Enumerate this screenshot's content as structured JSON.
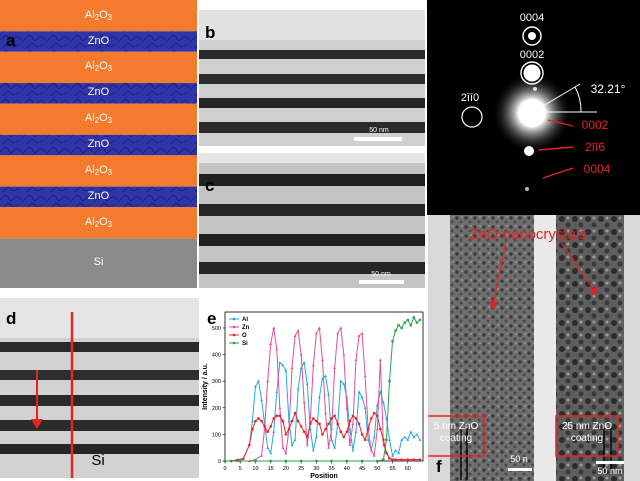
{
  "panel_a": {
    "label": "a",
    "layers": [
      {
        "name": "Al2O3",
        "kind": "al2o3"
      },
      {
        "name": "ZnO",
        "kind": "zno"
      },
      {
        "name": "Al2O3",
        "kind": "al2o3"
      },
      {
        "name": "ZnO",
        "kind": "zno"
      },
      {
        "name": "Al2O3",
        "kind": "al2o3"
      },
      {
        "name": "ZnO",
        "kind": "zno"
      },
      {
        "name": "Al2O3",
        "kind": "al2o3"
      },
      {
        "name": "ZnO",
        "kind": "zno"
      },
      {
        "name": "Al2O3",
        "kind": "al2o3"
      },
      {
        "name": "Si",
        "kind": "si"
      }
    ],
    "colors": {
      "al2o3": "#f47a2e",
      "zno": "#2f35a8",
      "si": "#8a8a8a"
    }
  },
  "panel_b": {
    "label": "b",
    "scalebar": "50 nm"
  },
  "panel_c": {
    "label": "c",
    "scalebar": "50 nm"
  },
  "panel_diffraction": {
    "spots_white": [
      "0004",
      "0002",
      "2īī0"
    ],
    "angle": "32.21°",
    "spots_red": [
      "0002",
      "2īī6",
      "0004"
    ]
  },
  "panel_d": {
    "label": "d",
    "substrate": "Si"
  },
  "panel_f": {
    "label": "f",
    "title": "ZnO nanocrystals",
    "left_box": "5 nm ZnO\ncoating",
    "right_box": "25 nm ZnO\ncoating",
    "scalebar_left": "50 n",
    "scalebar_right": "50 nm"
  },
  "chart_data": {
    "type": "line",
    "label": "e",
    "xlabel": "Position",
    "ylabel": "Intensity / a.u.",
    "xlim": [
      0,
      65
    ],
    "ylim": [
      0,
      560
    ],
    "xticks": [
      0,
      5,
      10,
      15,
      20,
      25,
      30,
      35,
      40,
      45,
      50,
      55,
      60
    ],
    "yticks": [
      0,
      100,
      200,
      300,
      400,
      500
    ],
    "legend_position": "top-left",
    "series": [
      {
        "name": "Al",
        "color": "#2aa9d6",
        "marker": "triangle",
        "x": [
          0,
          2,
          4,
          6,
          8,
          9,
          10,
          11,
          12,
          13,
          14,
          15,
          16,
          17,
          18,
          19,
          20,
          21,
          22,
          23,
          24,
          25,
          26,
          27,
          28,
          29,
          30,
          31,
          32,
          33,
          34,
          35,
          36,
          37,
          38,
          39,
          40,
          41,
          42,
          43,
          44,
          45,
          46,
          47,
          48,
          49,
          50,
          51,
          52,
          53,
          54,
          55,
          56,
          57,
          58,
          59,
          60,
          61,
          62,
          63,
          64
        ],
        "y": [
          0,
          0,
          5,
          10,
          60,
          150,
          280,
          300,
          230,
          140,
          50,
          30,
          110,
          260,
          370,
          360,
          340,
          150,
          60,
          80,
          270,
          350,
          370,
          290,
          120,
          40,
          90,
          240,
          310,
          320,
          250,
          80,
          50,
          140,
          300,
          290,
          240,
          120,
          40,
          110,
          260,
          240,
          200,
          80,
          40,
          90,
          210,
          260,
          220,
          160,
          80,
          20,
          40,
          30,
          80,
          90,
          80,
          110,
          90,
          100,
          80
        ]
      },
      {
        "name": "Zn",
        "color": "#e0509a",
        "marker": "triangle",
        "x": [
          0,
          4,
          8,
          10,
          12,
          13,
          14,
          15,
          16,
          17,
          18,
          19,
          20,
          21,
          22,
          23,
          24,
          25,
          26,
          27,
          28,
          29,
          30,
          31,
          32,
          33,
          34,
          35,
          36,
          37,
          38,
          39,
          40,
          41,
          42,
          43,
          44,
          45,
          46,
          47,
          48,
          49,
          50,
          51,
          52,
          54,
          56,
          58,
          60,
          62,
          64
        ],
        "y": [
          0,
          0,
          0,
          5,
          20,
          120,
          300,
          440,
          500,
          420,
          200,
          50,
          30,
          120,
          350,
          470,
          490,
          400,
          220,
          60,
          150,
          360,
          480,
          500,
          380,
          180,
          50,
          120,
          350,
          480,
          500,
          400,
          200,
          60,
          140,
          380,
          470,
          480,
          320,
          120,
          40,
          20,
          120,
          380,
          60,
          10,
          5,
          5,
          5,
          5,
          5
        ],
        "_note_removed": null
      },
      {
        "name": "O",
        "color": "#e8252a",
        "marker": "circle",
        "x": [
          0,
          2,
          4,
          6,
          8,
          9,
          10,
          11,
          12,
          13,
          14,
          15,
          16,
          17,
          18,
          19,
          20,
          21,
          22,
          23,
          24,
          25,
          26,
          27,
          28,
          29,
          30,
          31,
          32,
          33,
          34,
          35,
          36,
          37,
          38,
          39,
          40,
          41,
          42,
          43,
          44,
          45,
          46,
          47,
          48,
          49,
          50,
          51,
          52,
          53,
          54,
          55,
          56,
          58,
          60,
          62,
          64
        ],
        "y": [
          0,
          0,
          2,
          8,
          60,
          120,
          150,
          160,
          150,
          130,
          110,
          130,
          160,
          170,
          170,
          150,
          100,
          120,
          150,
          180,
          150,
          130,
          110,
          90,
          140,
          160,
          150,
          140,
          100,
          120,
          140,
          160,
          170,
          140,
          110,
          90,
          110,
          150,
          170,
          160,
          140,
          100,
          80,
          120,
          160,
          180,
          170,
          120,
          80,
          30,
          10,
          5,
          5,
          5,
          5,
          5,
          5
        ]
      },
      {
        "name": "Si",
        "color": "#2ca24a",
        "marker": "square",
        "x": [
          0,
          5,
          10,
          15,
          20,
          25,
          30,
          35,
          40,
          45,
          50,
          52,
          53,
          54,
          55,
          56,
          57,
          58,
          59,
          60,
          61,
          62,
          63,
          64
        ],
        "y": [
          0,
          0,
          0,
          0,
          0,
          0,
          0,
          0,
          0,
          0,
          0,
          5,
          80,
          300,
          450,
          490,
          510,
          500,
          520,
          530,
          510,
          540,
          520,
          530
        ]
      }
    ]
  }
}
